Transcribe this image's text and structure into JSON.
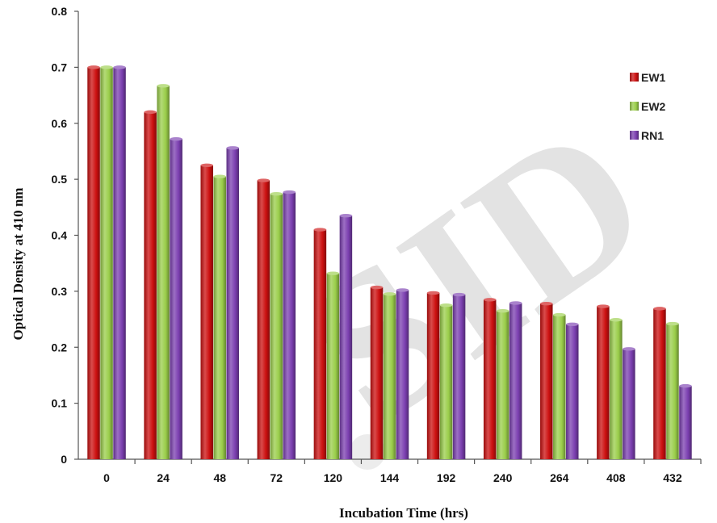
{
  "chart_data": {
    "type": "bar",
    "title": "",
    "xlabel": "Incubation Time (hrs)",
    "ylabel": "Optical Density at 410 nm",
    "categories": [
      "0",
      "24",
      "48",
      "72",
      "120",
      "144",
      "192",
      "240",
      "264",
      "408",
      "432"
    ],
    "ylim": [
      0,
      0.8
    ],
    "yticks": [
      "0",
      "0.1",
      "0.2",
      "0.3",
      "0.4",
      "0.5",
      "0.6",
      "0.7",
      "0.8"
    ],
    "ytick_values": [
      0,
      0.1,
      0.2,
      0.3,
      0.4,
      0.5,
      0.6,
      0.7,
      0.8
    ],
    "grid": false,
    "legend_position": "right",
    "series": [
      {
        "name": "EW1",
        "color": "#cc1010",
        "values": [
          0.7,
          0.62,
          0.525,
          0.498,
          0.41,
          0.307,
          0.297,
          0.285,
          0.278,
          0.273,
          0.269
        ]
      },
      {
        "name": "EW2",
        "color": "#9acd4a",
        "values": [
          0.7,
          0.667,
          0.505,
          0.474,
          0.332,
          0.295,
          0.275,
          0.265,
          0.258,
          0.249,
          0.242
        ]
      },
      {
        "name": "RN1",
        "color": "#7b3fb0",
        "values": [
          0.7,
          0.572,
          0.556,
          0.477,
          0.435,
          0.302,
          0.294,
          0.279,
          0.241,
          0.197,
          0.131
        ]
      }
    ]
  },
  "watermark": {
    "text": "SID",
    "color": "#e3e3e3"
  }
}
